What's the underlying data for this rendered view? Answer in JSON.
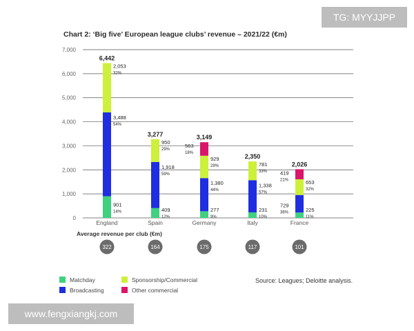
{
  "watermarks": {
    "top_right": "TG: MYYJJPP",
    "bottom_left": "www.fengxiangkj.com"
  },
  "colors": {
    "matchday": "#3fd17e",
    "broadcasting": "#1f2ee0",
    "sponsorship": "#cdf03a",
    "other": "#d9166a",
    "avg_circle": "#6b6b6b",
    "grid": "#555555"
  },
  "chart_data": {
    "type": "bar",
    "title": "Chart 2: ‘Big five’ European league clubs’ revenue – 2021/22 (€m)",
    "categories": [
      "England",
      "Spain",
      "Germany",
      "Italy",
      "France"
    ],
    "ylim": [
      0,
      7000
    ],
    "yticks": [
      "0",
      "1,000",
      "2,000",
      "3,000",
      "4,000",
      "5,000",
      "6,000",
      "7,000"
    ],
    "series": [
      {
        "name": "Matchday",
        "values": [
          901,
          409,
          277,
          231,
          225
        ],
        "labels": [
          "901",
          "409",
          "277",
          "231",
          "225"
        ],
        "pct": [
          "14%",
          "12%",
          "9%",
          "10%",
          "11%"
        ]
      },
      {
        "name": "Broadcasting",
        "values": [
          3488,
          1918,
          1380,
          1338,
          729
        ],
        "labels": [
          "3,488",
          "1,918",
          "1,380",
          "1,338",
          "729"
        ],
        "pct": [
          "54%",
          "59%",
          "44%",
          "57%",
          "36%"
        ]
      },
      {
        "name": "Sponsorship/Commercial",
        "values": [
          2053,
          950,
          929,
          781,
          653
        ],
        "labels": [
          "2,053",
          "950",
          "929",
          "781",
          "653"
        ],
        "pct": [
          "32%",
          "29%",
          "29%",
          "33%",
          "32%"
        ]
      },
      {
        "name": "Other commercial",
        "values": [
          0,
          0,
          563,
          0,
          419
        ],
        "labels": [
          "",
          "",
          "563",
          "",
          "419"
        ],
        "pct": [
          "",
          "",
          "18%",
          "",
          "21%"
        ]
      }
    ],
    "totals": [
      "6,442",
      "3,277",
      "3,149",
      "2,350",
      "2,026"
    ],
    "avg_label": "Average revenue per club (€m)",
    "avg_values": [
      "322",
      "164",
      "175",
      "117",
      "101"
    ],
    "legend": [
      "Matchday",
      "Sponsorship/Commercial",
      "Broadcasting",
      "Other commercial"
    ],
    "source": "Source: Leagues; Deloitte analysis."
  }
}
